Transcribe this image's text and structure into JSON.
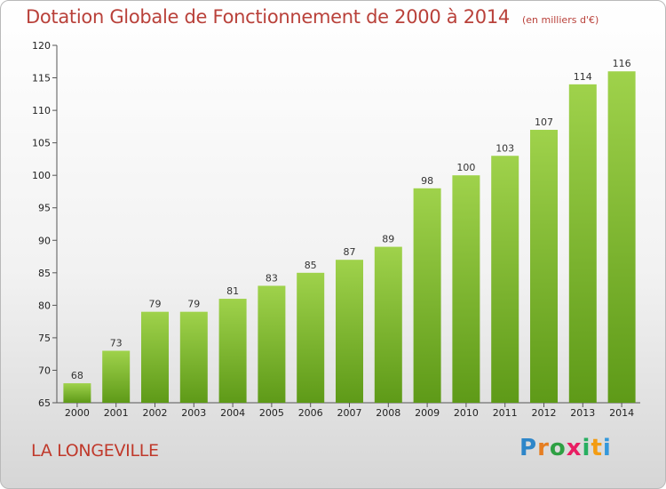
{
  "header": {
    "title": "Dotation Globale de Fonctionnement de 2000 à 2014",
    "subtitle": "(en milliers d'€)"
  },
  "footer": {
    "commune": "LA LONGEVILLE",
    "logo_text": "Proxiti"
  },
  "colors": {
    "bar_top": "#9fd24b",
    "bar_bottom": "#5e9a18",
    "title": "#b9413a",
    "commune": "#c0392b"
  },
  "chart_data": {
    "type": "bar",
    "title": "Dotation Globale de Fonctionnement de 2000 à 2014",
    "subtitle": "(en milliers d'€)",
    "categories": [
      "2000",
      "2001",
      "2002",
      "2003",
      "2004",
      "2005",
      "2006",
      "2007",
      "2008",
      "2009",
      "2010",
      "2011",
      "2012",
      "2013",
      "2014"
    ],
    "values": [
      68,
      73,
      79,
      79,
      81,
      83,
      85,
      87,
      89,
      98,
      100,
      103,
      107,
      114,
      116
    ],
    "ylim": [
      65,
      120
    ],
    "yticks": [
      65,
      70,
      75,
      80,
      85,
      90,
      95,
      100,
      105,
      110,
      115,
      120
    ],
    "grid": false,
    "legend": "none"
  }
}
